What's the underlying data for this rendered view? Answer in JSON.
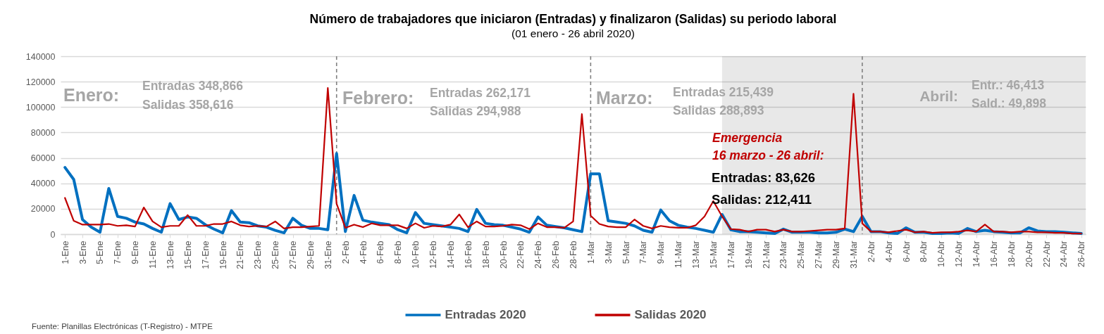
{
  "chart_data": {
    "type": "line",
    "title": "Número de trabajadores que iniciaron (Entradas) y finalizaron (Salidas) su periodo laboral",
    "subtitle": "(01 enero - 26 abril 2020)",
    "x": [
      "2020-01-01",
      "2020-01-02",
      "2020-01-03",
      "2020-01-04",
      "2020-01-05",
      "2020-01-06",
      "2020-01-07",
      "2020-01-08",
      "2020-01-09",
      "2020-01-10",
      "2020-01-11",
      "2020-01-12",
      "2020-01-13",
      "2020-01-14",
      "2020-01-15",
      "2020-01-16",
      "2020-01-17",
      "2020-01-18",
      "2020-01-19",
      "2020-01-20",
      "2020-01-21",
      "2020-01-22",
      "2020-01-23",
      "2020-01-24",
      "2020-01-25",
      "2020-01-26",
      "2020-01-27",
      "2020-01-28",
      "2020-01-29",
      "2020-01-30",
      "2020-01-31",
      "2020-02-01",
      "2020-02-02",
      "2020-02-03",
      "2020-02-04",
      "2020-02-05",
      "2020-02-06",
      "2020-02-07",
      "2020-02-08",
      "2020-02-09",
      "2020-02-10",
      "2020-02-11",
      "2020-02-12",
      "2020-02-13",
      "2020-02-14",
      "2020-02-15",
      "2020-02-16",
      "2020-02-17",
      "2020-02-18",
      "2020-02-19",
      "2020-02-20",
      "2020-02-21",
      "2020-02-22",
      "2020-02-23",
      "2020-02-24",
      "2020-02-25",
      "2020-02-26",
      "2020-02-27",
      "2020-02-28",
      "2020-02-29",
      "2020-03-01",
      "2020-03-02",
      "2020-03-03",
      "2020-03-04",
      "2020-03-05",
      "2020-03-06",
      "2020-03-07",
      "2020-03-08",
      "2020-03-09",
      "2020-03-10",
      "2020-03-11",
      "2020-03-12",
      "2020-03-13",
      "2020-03-14",
      "2020-03-15",
      "2020-03-16",
      "2020-03-17",
      "2020-03-18",
      "2020-03-19",
      "2020-03-20",
      "2020-03-21",
      "2020-03-22",
      "2020-03-23",
      "2020-03-24",
      "2020-03-25",
      "2020-03-26",
      "2020-03-27",
      "2020-03-28",
      "2020-03-29",
      "2020-03-30",
      "2020-03-31",
      "2020-04-01",
      "2020-04-02",
      "2020-04-03",
      "2020-04-04",
      "2020-04-05",
      "2020-04-06",
      "2020-04-07",
      "2020-04-08",
      "2020-04-09",
      "2020-04-10",
      "2020-04-11",
      "2020-04-12",
      "2020-04-13",
      "2020-04-14",
      "2020-04-15",
      "2020-04-16",
      "2020-04-17",
      "2020-04-18",
      "2020-04-19",
      "2020-04-20",
      "2020-04-21",
      "2020-04-22",
      "2020-04-23",
      "2020-04-24",
      "2020-04-25",
      "2020-04-26"
    ],
    "series": [
      {
        "name": "Entradas 2020",
        "color": "#0070c0",
        "values": [
          52500,
          43000,
          11500,
          5500,
          1500,
          36000,
          14000,
          12500,
          9500,
          8000,
          4500,
          1500,
          24000,
          11500,
          13500,
          12500,
          7500,
          4000,
          1000,
          18500,
          9500,
          9000,
          6500,
          5500,
          3000,
          1000,
          12500,
          7000,
          4500,
          4500,
          3500,
          63500,
          2000,
          30500,
          11000,
          9500,
          8500,
          7500,
          3500,
          1000,
          17000,
          8500,
          7500,
          6500,
          5500,
          4500,
          2000,
          19500,
          8500,
          7500,
          7000,
          5500,
          4000,
          1500,
          13500,
          7000,
          6000,
          5000,
          3500,
          2000,
          47500,
          47500,
          10500,
          9500,
          8500,
          6500,
          3000,
          1500,
          19000,
          10500,
          7000,
          5500,
          4500,
          3000,
          1500,
          15500,
          3500,
          2000,
          2000,
          1500,
          1000,
          500,
          4000,
          1500,
          1500,
          1500,
          1000,
          1000,
          1500,
          4000,
          2000,
          14000,
          2000,
          2000,
          1000,
          500,
          5000,
          1500,
          1500,
          500,
          500,
          1000,
          500,
          4500,
          2000,
          3000,
          2000,
          1500,
          1000,
          1000,
          5000,
          2500,
          2000,
          2000,
          1500,
          1000,
          500
        ]
      },
      {
        "name": "Salidas 2020",
        "color": "#c00000",
        "values": [
          28500,
          10500,
          7500,
          7500,
          7500,
          8000,
          6500,
          7000,
          6000,
          21000,
          10000,
          5500,
          6500,
          6500,
          15000,
          6500,
          6500,
          8000,
          8000,
          10000,
          7000,
          6000,
          6500,
          6000,
          10000,
          4500,
          5500,
          5500,
          6000,
          6500,
          115000,
          24000,
          5000,
          7500,
          5500,
          8500,
          7000,
          7000,
          7000,
          4500,
          8500,
          5000,
          6500,
          6000,
          7500,
          15500,
          5500,
          10000,
          6000,
          6000,
          6500,
          7500,
          7000,
          4000,
          8500,
          5500,
          5500,
          5000,
          10000,
          94500,
          14500,
          8000,
          6000,
          5500,
          5500,
          11500,
          6500,
          4500,
          6500,
          5500,
          5000,
          5000,
          7000,
          14000,
          26000,
          14000,
          4000,
          3500,
          2000,
          3500,
          3500,
          2000,
          3500,
          2000,
          2000,
          2500,
          3000,
          3500,
          3500,
          4500,
          110500,
          8500,
          2000,
          2000,
          1500,
          2500,
          3500,
          1500,
          2000,
          1000,
          1500,
          1500,
          2000,
          3000,
          2000,
          7500,
          2000,
          2000,
          1500,
          2000,
          2000,
          1500,
          1500,
          1000,
          1000,
          500,
          500
        ]
      }
    ],
    "xlim": [
      "2019-12-31T12:00",
      "2020-04-26T12:00"
    ],
    "xticks": [
      {
        "value": "2020-01-01",
        "label": "1-Ene"
      },
      {
        "value": "2020-01-03",
        "label": "3-Ene"
      },
      {
        "value": "2020-01-05",
        "label": "5-Ene"
      },
      {
        "value": "2020-01-07",
        "label": "7-Ene"
      },
      {
        "value": "2020-01-09",
        "label": "9-Ene"
      },
      {
        "value": "2020-01-11",
        "label": "11-Ene"
      },
      {
        "value": "2020-01-13",
        "label": "13-Ene"
      },
      {
        "value": "2020-01-15",
        "label": "15-Ene"
      },
      {
        "value": "2020-01-17",
        "label": "17-Ene"
      },
      {
        "value": "2020-01-19",
        "label": "19-Ene"
      },
      {
        "value": "2020-01-21",
        "label": "21-Ene"
      },
      {
        "value": "2020-01-23",
        "label": "23-Ene"
      },
      {
        "value": "2020-01-25",
        "label": "25-Ene"
      },
      {
        "value": "2020-01-27",
        "label": "27-Ene"
      },
      {
        "value": "2020-01-29",
        "label": "29-Ene"
      },
      {
        "value": "2020-01-31",
        "label": "31-Ene"
      },
      {
        "value": "2020-02-02",
        "label": "2-Feb"
      },
      {
        "value": "2020-02-04",
        "label": "4-Feb"
      },
      {
        "value": "2020-02-06",
        "label": "6-Feb"
      },
      {
        "value": "2020-02-08",
        "label": "8-Feb"
      },
      {
        "value": "2020-02-10",
        "label": "10-Feb"
      },
      {
        "value": "2020-02-12",
        "label": "12-Feb"
      },
      {
        "value": "2020-02-14",
        "label": "14-Feb"
      },
      {
        "value": "2020-02-16",
        "label": "16-Feb"
      },
      {
        "value": "2020-02-18",
        "label": "18-Feb"
      },
      {
        "value": "2020-02-20",
        "label": "20-Feb"
      },
      {
        "value": "2020-02-22",
        "label": "22-Feb"
      },
      {
        "value": "2020-02-24",
        "label": "24-Feb"
      },
      {
        "value": "2020-02-26",
        "label": "26-Feb"
      },
      {
        "value": "2020-02-28",
        "label": "28-Feb"
      },
      {
        "value": "2020-03-01",
        "label": "1-Mar"
      },
      {
        "value": "2020-03-03",
        "label": "3-Mar"
      },
      {
        "value": "2020-03-05",
        "label": "5-Mar"
      },
      {
        "value": "2020-03-07",
        "label": "7-Mar"
      },
      {
        "value": "2020-03-09",
        "label": "9-Mar"
      },
      {
        "value": "2020-03-11",
        "label": "11-Mar"
      },
      {
        "value": "2020-03-13",
        "label": "13-Mar"
      },
      {
        "value": "2020-03-15",
        "label": "15-Mar"
      },
      {
        "value": "2020-03-17",
        "label": "17-Mar"
      },
      {
        "value": "2020-03-19",
        "label": "19-Mar"
      },
      {
        "value": "2020-03-21",
        "label": "21-Mar"
      },
      {
        "value": "2020-03-23",
        "label": "23-Mar"
      },
      {
        "value": "2020-03-25",
        "label": "25-Mar"
      },
      {
        "value": "2020-03-27",
        "label": "27-Mar"
      },
      {
        "value": "2020-03-29",
        "label": "29-Mar"
      },
      {
        "value": "2020-03-31",
        "label": "31-Mar"
      },
      {
        "value": "2020-04-02",
        "label": "2-Abr"
      },
      {
        "value": "2020-04-04",
        "label": "4-Abr"
      },
      {
        "value": "2020-04-06",
        "label": "6-Abr"
      },
      {
        "value": "2020-04-08",
        "label": "8-Abr"
      },
      {
        "value": "2020-04-10",
        "label": "10-Abr"
      },
      {
        "value": "2020-04-12",
        "label": "12-Abr"
      },
      {
        "value": "2020-04-14",
        "label": "14-Abr"
      },
      {
        "value": "2020-04-16",
        "label": "16-Abr"
      },
      {
        "value": "2020-04-18",
        "label": "18-Abr"
      },
      {
        "value": "2020-04-20",
        "label": "20-Abr"
      },
      {
        "value": "2020-04-22",
        "label": "22-Abr"
      },
      {
        "value": "2020-04-24",
        "label": "24-Abr"
      },
      {
        "value": "2020-04-26",
        "label": "26-Abr"
      }
    ],
    "ylim": [
      0,
      140000
    ],
    "yticks": [
      0,
      20000,
      40000,
      60000,
      80000,
      100000,
      120000,
      140000
    ],
    "grid": "y",
    "legend": "bottom",
    "ref_lines": [
      {
        "axis": "x",
        "value": "2020-02-01",
        "color": "#808080",
        "line_style": "dashed"
      },
      {
        "axis": "x",
        "value": "2020-03-01",
        "color": "#808080",
        "line_style": "dashed"
      },
      {
        "axis": "x",
        "value": "2020-04-01",
        "color": "#808080",
        "line_style": "dashed"
      }
    ],
    "bands": [
      {
        "axis": "x",
        "from": "2020-03-16",
        "to": "2020-04-26T12:00",
        "color": "#e8e8e8"
      }
    ],
    "annotations": [
      "Enero:",
      "Entradas 348,866",
      "Salidas 358,616",
      "Febrero:",
      "Entradas 262,171",
      "Salidas 294,988",
      "Marzo:",
      "Entradas 215,439",
      "Salidas 288,893",
      "Abril:",
      "Entr.: 46,413",
      "Sald.: 49,898",
      "Emergencia",
      "16 marzo - 26 abril:",
      "Entradas: 83,626",
      "Salidas: 212,411",
      "Fuente: Planillas Electrónicas (T-Registro) - MTPE"
    ]
  }
}
